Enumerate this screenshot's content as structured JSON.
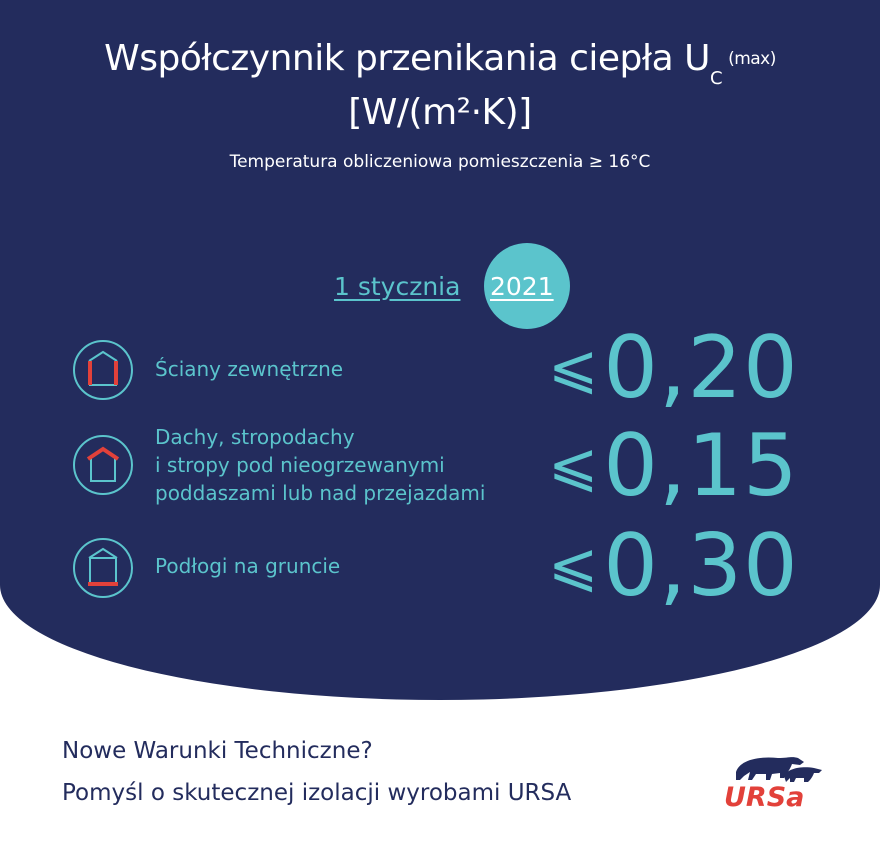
{
  "title": {
    "line1": "Współczynnik przenikania ciepła U",
    "subscript": "C",
    "superscript": "(max)",
    "line2": "[W/(m²·K)]"
  },
  "subtitle": "Temperatura obliczeniowa pomieszczenia ≥ 16°C",
  "date": {
    "prefix": "1 stycznia",
    "year": "2021"
  },
  "rows": [
    {
      "icon": "house-walls-icon",
      "label_lines": [
        "Ściany zewnętrzne"
      ],
      "symbol": "⩽",
      "value": "0,20"
    },
    {
      "icon": "house-roof-icon",
      "label_lines": [
        "Dachy, stropodachy",
        "i stropy pod nieogrzewanymi",
        "poddaszami lub nad przejazdami"
      ],
      "symbol": "⩽",
      "value": "0,15"
    },
    {
      "icon": "house-floor-icon",
      "label_lines": [
        "Podłogi na gruncie"
      ],
      "symbol": "⩽",
      "value": "0,30"
    }
  ],
  "footer": {
    "line1": "Nowe Warunki Techniczne?",
    "line2": "Pomyśl o skutecznej izolacji wyrobami URSA"
  },
  "logo": {
    "text": "URSa"
  },
  "colors": {
    "navy": "#232c5d",
    "teal": "#5bc4cc",
    "red": "#e2413a",
    "white": "#ffffff"
  }
}
